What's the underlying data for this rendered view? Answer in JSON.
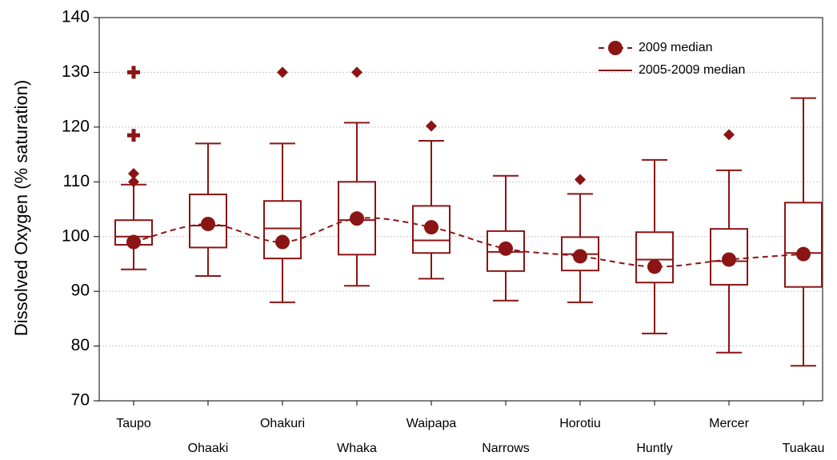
{
  "chart_data": {
    "type": "box",
    "y_label": "Dissolved Oxygen (% saturation)",
    "categories": [
      "Taupo",
      "Ohaaki",
      "Ohakuri",
      "Whaka",
      "Waipapa",
      "Narrows",
      "Horotiu",
      "Huntly",
      "Mercer",
      "Tuakau"
    ],
    "color": "#8b1414",
    "boxes": [
      {
        "low": 94,
        "q1": 98.5,
        "median": 100,
        "q3": 103,
        "high": 109.5,
        "outliers": [
          110,
          111.5
        ],
        "extremes": [
          118.5,
          130
        ]
      },
      {
        "low": 92.8,
        "q1": 98,
        "median": 102,
        "q3": 107.7,
        "high": 117,
        "outliers": [],
        "extremes": []
      },
      {
        "low": 88,
        "q1": 96,
        "median": 101.5,
        "q3": 106.5,
        "high": 117,
        "outliers": [
          130
        ],
        "extremes": []
      },
      {
        "low": 91,
        "q1": 96.7,
        "median": 103,
        "q3": 110,
        "high": 120.8,
        "outliers": [
          130
        ],
        "extremes": []
      },
      {
        "low": 92.3,
        "q1": 97,
        "median": 99.3,
        "q3": 105.6,
        "high": 117.5,
        "outliers": [
          120.2
        ],
        "extremes": []
      },
      {
        "low": 88.3,
        "q1": 93.7,
        "median": 97.2,
        "q3": 101,
        "high": 111.1,
        "outliers": [],
        "extremes": []
      },
      {
        "low": 88,
        "q1": 93.8,
        "median": 96.8,
        "q3": 99.9,
        "high": 107.8,
        "outliers": [
          110.4
        ],
        "extremes": []
      },
      {
        "low": 82.3,
        "q1": 91.6,
        "median": 95.8,
        "q3": 100.8,
        "high": 114,
        "outliers": [],
        "extremes": []
      },
      {
        "low": 78.8,
        "q1": 91.2,
        "median": 95.5,
        "q3": 101.4,
        "high": 112.1,
        "outliers": [
          118.6
        ],
        "extremes": []
      },
      {
        "low": 76.4,
        "q1": 90.8,
        "median": 97,
        "q3": 106.2,
        "high": 125.3,
        "outliers": [],
        "extremes": []
      }
    ],
    "box_median_name": "2005-2009 median",
    "series": [
      {
        "name": "2009 median",
        "color": "#8b1414",
        "values": [
          99,
          102.3,
          99,
          103.3,
          101.7,
          97.8,
          96.4,
          94.5,
          95.8,
          96.8
        ]
      }
    ],
    "ylim": [
      70,
      140
    ],
    "yticks": [
      70,
      80,
      90,
      100,
      110,
      120,
      130,
      140
    ],
    "grid": true,
    "legend": "top-right"
  }
}
